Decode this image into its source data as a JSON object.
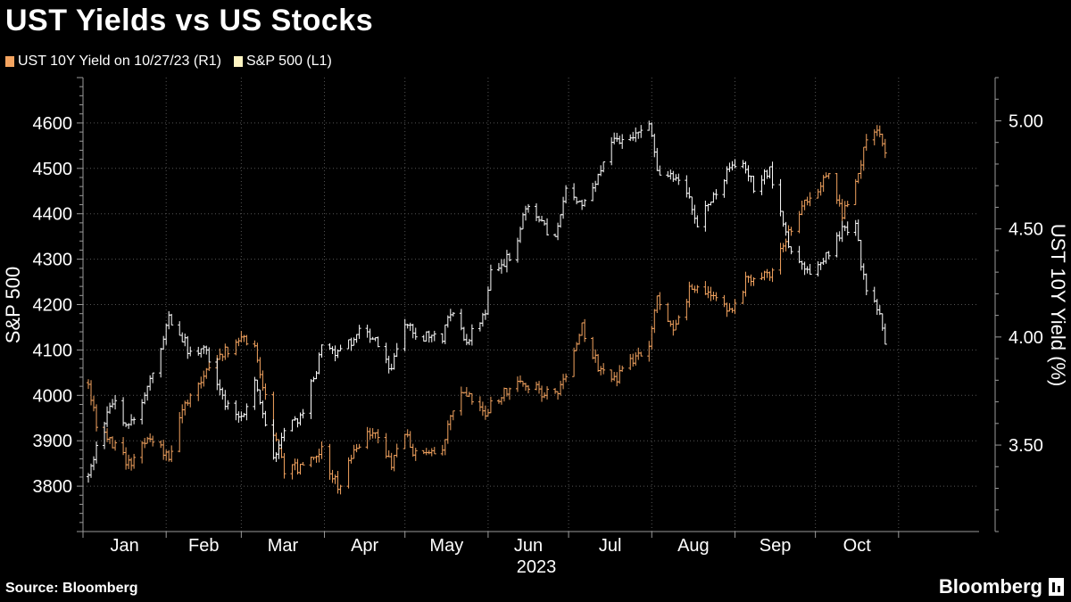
{
  "header": {
    "title": "UST Yields vs US Stocks"
  },
  "legend": {
    "items": [
      {
        "label": "UST 10Y Yield on 10/27/23 (R1)",
        "color": "#f4a460"
      },
      {
        "label": "S&P 500 (L1)",
        "color": "#fff5c2"
      }
    ]
  },
  "footer": {
    "source": "Source: Bloomberg",
    "brand": "Bloomberg"
  },
  "chart_data": {
    "type": "line",
    "title": "UST Yields vs US Stocks",
    "xlabel": "2023",
    "x_ticks": [
      "Jan",
      "Feb",
      "Mar",
      "Apr",
      "May",
      "Jun",
      "Jul",
      "Aug",
      "Sep",
      "Oct"
    ],
    "left_axis": {
      "label": "S&P 500",
      "range": [
        3700,
        4700
      ],
      "ticks": [
        3800,
        3900,
        4000,
        4100,
        4200,
        4300,
        4400,
        4500,
        4600
      ],
      "tick_labels": [
        "3800",
        "3900",
        "4000",
        "4100",
        "4200",
        "4300",
        "4400",
        "4500",
        "4600"
      ]
    },
    "right_axis": {
      "label": "UST 10Y Yield (%)",
      "range": [
        3.1,
        5.2
      ],
      "ticks": [
        3.5,
        4.0,
        4.5,
        5.0
      ],
      "tick_labels": [
        "3.50",
        "4.00",
        "4.50",
        "5.00"
      ]
    },
    "gridlines": true,
    "series": [
      {
        "name": "S&P 500",
        "axis": "left",
        "style": "ohlc",
        "color": "#ffffff",
        "anchors": [
          [
            "2023-01-03",
            3830
          ],
          [
            "2023-01-06",
            3880
          ],
          [
            "2023-01-12",
            3990
          ],
          [
            "2023-01-18",
            3930
          ],
          [
            "2023-01-25",
            4020
          ],
          [
            "2023-02-02",
            4170
          ],
          [
            "2023-02-06",
            4140
          ],
          [
            "2023-02-10",
            4090
          ],
          [
            "2023-02-16",
            4100
          ],
          [
            "2023-02-22",
            3990
          ],
          [
            "2023-03-01",
            3950
          ],
          [
            "2023-03-06",
            4040
          ],
          [
            "2023-03-13",
            3860
          ],
          [
            "2023-03-17",
            3920
          ],
          [
            "2023-03-24",
            3960
          ],
          [
            "2023-03-31",
            4100
          ],
          [
            "2023-04-06",
            4090
          ],
          [
            "2023-04-14",
            4140
          ],
          [
            "2023-04-20",
            4120
          ],
          [
            "2023-04-26",
            4060
          ],
          [
            "2023-05-01",
            4160
          ],
          [
            "2023-05-05",
            4130
          ],
          [
            "2023-05-10",
            4130
          ],
          [
            "2023-05-15",
            4130
          ],
          [
            "2023-05-19",
            4190
          ],
          [
            "2023-05-24",
            4120
          ],
          [
            "2023-05-31",
            4180
          ],
          [
            "2023-06-02",
            4280
          ],
          [
            "2023-06-07",
            4290
          ],
          [
            "2023-06-12",
            4340
          ],
          [
            "2023-06-15",
            4420
          ],
          [
            "2023-06-20",
            4390
          ],
          [
            "2023-06-26",
            4340
          ],
          [
            "2023-06-30",
            4450
          ],
          [
            "2023-07-06",
            4410
          ],
          [
            "2023-07-12",
            4480
          ],
          [
            "2023-07-18",
            4560
          ],
          [
            "2023-07-24",
            4560
          ],
          [
            "2023-07-31",
            4590
          ],
          [
            "2023-08-03",
            4500
          ],
          [
            "2023-08-09",
            4480
          ],
          [
            "2023-08-15",
            4440
          ],
          [
            "2023-08-18",
            4370
          ],
          [
            "2023-08-23",
            4430
          ],
          [
            "2023-08-31",
            4510
          ],
          [
            "2023-09-05",
            4500
          ],
          [
            "2023-09-08",
            4460
          ],
          [
            "2023-09-14",
            4500
          ],
          [
            "2023-09-21",
            4330
          ],
          [
            "2023-09-27",
            4270
          ],
          [
            "2023-10-02",
            4290
          ],
          [
            "2023-10-06",
            4310
          ],
          [
            "2023-10-11",
            4370
          ],
          [
            "2023-10-16",
            4370
          ],
          [
            "2023-10-20",
            4220
          ],
          [
            "2023-10-25",
            4190
          ],
          [
            "2023-10-27",
            4117
          ]
        ]
      },
      {
        "name": "UST 10Y Yield on 10/27/23",
        "axis": "right",
        "style": "ohlc",
        "color": "#f4a460",
        "anchors": [
          [
            "2023-01-03",
            3.8
          ],
          [
            "2023-01-06",
            3.58
          ],
          [
            "2023-01-12",
            3.51
          ],
          [
            "2023-01-18",
            3.41
          ],
          [
            "2023-01-25",
            3.52
          ],
          [
            "2023-02-02",
            3.45
          ],
          [
            "2023-02-06",
            3.62
          ],
          [
            "2023-02-10",
            3.74
          ],
          [
            "2023-02-16",
            3.85
          ],
          [
            "2023-02-22",
            3.92
          ],
          [
            "2023-03-01",
            4.0
          ],
          [
            "2023-03-06",
            3.97
          ],
          [
            "2023-03-13",
            3.55
          ],
          [
            "2023-03-17",
            3.39
          ],
          [
            "2023-03-24",
            3.4
          ],
          [
            "2023-03-31",
            3.48
          ],
          [
            "2023-04-06",
            3.3
          ],
          [
            "2023-04-14",
            3.51
          ],
          [
            "2023-04-20",
            3.58
          ],
          [
            "2023-04-26",
            3.42
          ],
          [
            "2023-05-01",
            3.55
          ],
          [
            "2023-05-05",
            3.45
          ],
          [
            "2023-05-10",
            3.44
          ],
          [
            "2023-05-15",
            3.5
          ],
          [
            "2023-05-19",
            3.68
          ],
          [
            "2023-05-24",
            3.75
          ],
          [
            "2023-05-31",
            3.63
          ],
          [
            "2023-06-02",
            3.69
          ],
          [
            "2023-06-07",
            3.75
          ],
          [
            "2023-06-12",
            3.77
          ],
          [
            "2023-06-15",
            3.78
          ],
          [
            "2023-06-20",
            3.75
          ],
          [
            "2023-06-26",
            3.73
          ],
          [
            "2023-06-30",
            3.81
          ],
          [
            "2023-07-06",
            4.05
          ],
          [
            "2023-07-12",
            3.86
          ],
          [
            "2023-07-18",
            3.8
          ],
          [
            "2023-07-24",
            3.88
          ],
          [
            "2023-07-31",
            3.96
          ],
          [
            "2023-08-03",
            4.18
          ],
          [
            "2023-08-09",
            4.02
          ],
          [
            "2023-08-15",
            4.21
          ],
          [
            "2023-08-18",
            4.25
          ],
          [
            "2023-08-23",
            4.19
          ],
          [
            "2023-08-31",
            4.11
          ],
          [
            "2023-09-05",
            4.26
          ],
          [
            "2023-09-08",
            4.26
          ],
          [
            "2023-09-14",
            4.29
          ],
          [
            "2023-09-21",
            4.49
          ],
          [
            "2023-09-27",
            4.61
          ],
          [
            "2023-10-02",
            4.68
          ],
          [
            "2023-10-06",
            4.78
          ],
          [
            "2023-10-11",
            4.56
          ],
          [
            "2023-10-16",
            4.71
          ],
          [
            "2023-10-20",
            4.92
          ],
          [
            "2023-10-25",
            4.95
          ],
          [
            "2023-10-27",
            4.84
          ]
        ]
      }
    ]
  }
}
